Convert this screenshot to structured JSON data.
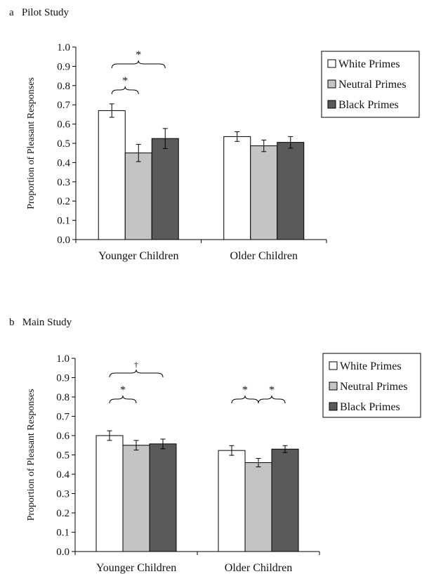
{
  "chart_data": [
    {
      "type": "bar",
      "panel_label": "a",
      "title": "Pilot Study",
      "ylabel": "Proportion of Pleasant Responses",
      "xlabel": "",
      "ylim": [
        0,
        1.0
      ],
      "yticks": [
        "0.0",
        "0.1",
        "0.2",
        "0.3",
        "0.4",
        "0.5",
        "0.6",
        "0.7",
        "0.8",
        "0.9",
        "1.0"
      ],
      "categories": [
        "Younger Children",
        "Older Children"
      ],
      "series": [
        {
          "name": "White Primes",
          "color": "#ffffff",
          "values": [
            0.67,
            0.535
          ],
          "errors": [
            0.035,
            0.025
          ]
        },
        {
          "name": "Neutral Primes",
          "color": "#c4c4c4",
          "values": [
            0.45,
            0.487
          ],
          "errors": [
            0.045,
            0.03
          ]
        },
        {
          "name": "Black Primes",
          "color": "#5a5a5a",
          "values": [
            0.525,
            0.505
          ],
          "errors": [
            0.052,
            0.03
          ]
        }
      ],
      "annotations": [
        {
          "category": 0,
          "from": 0,
          "to": 1,
          "level": 1,
          "symbol": "*"
        },
        {
          "category": 0,
          "from": 0,
          "to": 2,
          "level": 2,
          "symbol": "*"
        }
      ],
      "legend": "top-right",
      "grid": false
    },
    {
      "type": "bar",
      "panel_label": "b",
      "title": "Main Study",
      "ylabel": "Proportion of Pleasant Responses",
      "xlabel": "",
      "ylim": [
        0,
        1.0
      ],
      "yticks": [
        "0.0",
        "0.1",
        "0.2",
        "0.3",
        "0.4",
        "0.5",
        "0.6",
        "0.7",
        "0.8",
        "0.9",
        "1.0"
      ],
      "categories": [
        "Younger Children",
        "Older Children"
      ],
      "series": [
        {
          "name": "White Primes",
          "color": "#ffffff",
          "values": [
            0.6,
            0.523
          ],
          "errors": [
            0.025,
            0.025
          ]
        },
        {
          "name": "Neutral Primes",
          "color": "#c4c4c4",
          "values": [
            0.55,
            0.46
          ],
          "errors": [
            0.025,
            0.022
          ]
        },
        {
          "name": "Black Primes",
          "color": "#5a5a5a",
          "values": [
            0.557,
            0.53
          ],
          "errors": [
            0.025,
            0.018
          ]
        }
      ],
      "annotations": [
        {
          "category": 0,
          "from": 0,
          "to": 1,
          "level": 1,
          "symbol": "*"
        },
        {
          "category": 0,
          "from": 0,
          "to": 2,
          "level": 2,
          "symbol": "†"
        },
        {
          "category": 1,
          "from": 0,
          "to": 1,
          "level": 1,
          "symbol": "*"
        },
        {
          "category": 1,
          "from": 1,
          "to": 2,
          "level": 1,
          "symbol": "*"
        }
      ],
      "legend": "top-right",
      "grid": false
    }
  ]
}
